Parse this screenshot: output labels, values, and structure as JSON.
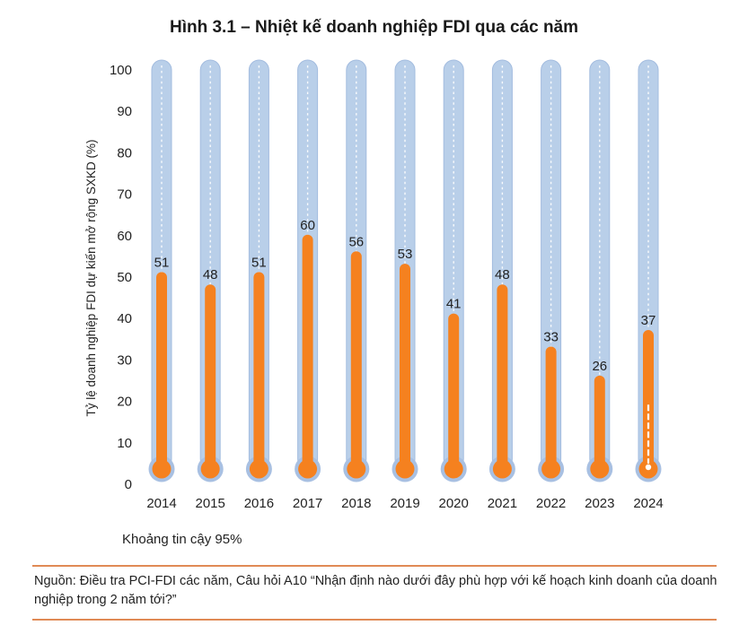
{
  "title": "Hình 3.1 – Nhiệt kế doanh nghiệp FDI qua các năm",
  "ci_note": "Khoảng tin cậy 95%",
  "source": "Nguồn: Điều tra PCI-FDI các năm, Câu hỏi A10 “Nhận định nào dưới đây phù hợp với kế hoạch kinh doanh của doanh nghiệp trong 2 năm tới?”",
  "colors": {
    "tube": "#b9cfe9",
    "tube_edge": "#a3bcdf",
    "fill": "#f5811f",
    "bulb_ring": "#a8c0e2"
  },
  "chart_data": {
    "type": "bar",
    "title": "Hình 3.1 – Nhiệt kế doanh nghiệp FDI qua các năm",
    "ylabel": "Tỷ lệ doanh nghiệp FDI dự kiến mở rộng SXKD (%)",
    "xlabel": "",
    "ylim": [
      0,
      100
    ],
    "yticks": [
      "0",
      "10",
      "20",
      "30",
      "40",
      "50",
      "60",
      "70",
      "80",
      "90",
      "100"
    ],
    "categories": [
      "2014",
      "2015",
      "2016",
      "2017",
      "2018",
      "2019",
      "2020",
      "2021",
      "2022",
      "2023",
      "2024"
    ],
    "values": [
      51,
      48,
      51,
      60,
      56,
      53,
      41,
      48,
      33,
      26,
      37
    ],
    "labels": [
      "51",
      "48",
      "51",
      "60",
      "56",
      "53",
      "41",
      "48",
      "33",
      "26",
      "37"
    ],
    "style": "thermometer"
  }
}
